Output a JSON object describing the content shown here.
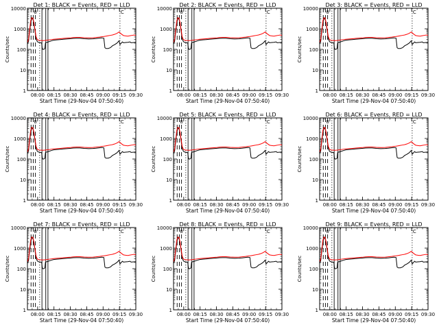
{
  "colors": {
    "background": "#ffffff",
    "events": "#000000",
    "lld": "#ff0000"
  },
  "chart_data": [
    {
      "title": "Det 1: BLACK = Events, RED = LLD"
    },
    {
      "title": "Det 2: BLACK = Events, RED = LLD"
    },
    {
      "title": "Det 3: BLACK = Events, RED = LLD"
    },
    {
      "title": "Det 4: BLACK = Events, RED = LLD"
    },
    {
      "title": "Det 5: BLACK = Events, RED = LLD"
    },
    {
      "title": "Det 6: BLACK = Events, RED = LLD"
    },
    {
      "title": "Det 7: BLACK = Events, RED = LLD"
    },
    {
      "title": "Det 8: BLACK = Events, RED = LLD"
    },
    {
      "title": "Det 9: BLACK = Events, RED = LLD"
    }
  ],
  "common": {
    "type": "line",
    "xlabel": "Start Time (29-Nov-04 07:50:40)",
    "ylabel": "Counts/sec",
    "x_ticks": [
      "08:00",
      "08:15",
      "08:30",
      "08:45",
      "09:00",
      "09:15",
      "09:30"
    ],
    "x_tick_minutes": [
      9.33,
      24.33,
      39.33,
      54.33,
      69.33,
      84.33,
      99.33
    ],
    "x_range_minutes": [
      0,
      99.33
    ],
    "y_scale": "log",
    "y_range": [
      1,
      10000
    ],
    "y_ticks": [
      "1",
      "10",
      "100",
      "1000",
      "10000"
    ],
    "series": [
      {
        "name": "Events",
        "color": "#000000",
        "points": [
          [
            0,
            180
          ],
          [
            1,
            250
          ],
          [
            2,
            700
          ],
          [
            3,
            2000
          ],
          [
            4,
            3200
          ],
          [
            5,
            3000
          ],
          [
            6,
            1700
          ],
          [
            7,
            700
          ],
          [
            8,
            320
          ],
          [
            9,
            240
          ],
          [
            10,
            220
          ],
          [
            11,
            215
          ],
          [
            12,
            210
          ],
          [
            13,
            205
          ],
          [
            13.5,
            120
          ],
          [
            14,
            100
          ],
          [
            15,
            100
          ],
          [
            16,
            110
          ],
          [
            16.5,
            205
          ],
          [
            17,
            215
          ],
          [
            18,
            220
          ],
          [
            22,
            260
          ],
          [
            24,
            280
          ],
          [
            27,
            290
          ],
          [
            30,
            300
          ],
          [
            33,
            310
          ],
          [
            36,
            320
          ],
          [
            39,
            330
          ],
          [
            42,
            340
          ],
          [
            45,
            345
          ],
          [
            48,
            345
          ],
          [
            52,
            330
          ],
          [
            56,
            320
          ],
          [
            60,
            325
          ],
          [
            63,
            335
          ],
          [
            66,
            350
          ],
          [
            68,
            360
          ],
          [
            70,
            350
          ],
          [
            71,
            120
          ],
          [
            72,
            110
          ],
          [
            74,
            110
          ],
          [
            76,
            120
          ],
          [
            78,
            150
          ],
          [
            80,
            170
          ],
          [
            82,
            200
          ],
          [
            84,
            260
          ],
          [
            84.8,
            170
          ],
          [
            86,
            200
          ],
          [
            87,
            230
          ],
          [
            88,
            210
          ],
          [
            90,
            215
          ],
          [
            92,
            220
          ],
          [
            94,
            230
          ],
          [
            95,
            210
          ],
          [
            99.33,
            220
          ]
        ]
      },
      {
        "name": "LLD",
        "color": "#ff0000",
        "points": [
          [
            0,
            220
          ],
          [
            1,
            300
          ],
          [
            2,
            900
          ],
          [
            3,
            2500
          ],
          [
            4,
            3500
          ],
          [
            5,
            3300
          ],
          [
            6,
            2000
          ],
          [
            7,
            850
          ],
          [
            8,
            400
          ],
          [
            9,
            300
          ],
          [
            10,
            280
          ],
          [
            11,
            275
          ],
          [
            12,
            270
          ],
          [
            14,
            265
          ],
          [
            16,
            270
          ],
          [
            18,
            280
          ],
          [
            22,
            300
          ],
          [
            24,
            310
          ],
          [
            27,
            320
          ],
          [
            30,
            330
          ],
          [
            33,
            340
          ],
          [
            36,
            350
          ],
          [
            39,
            360
          ],
          [
            42,
            375
          ],
          [
            45,
            385
          ],
          [
            48,
            385
          ],
          [
            52,
            370
          ],
          [
            56,
            360
          ],
          [
            60,
            365
          ],
          [
            63,
            380
          ],
          [
            66,
            395
          ],
          [
            68,
            410
          ],
          [
            70,
            420
          ],
          [
            72,
            440
          ],
          [
            74,
            460
          ],
          [
            76,
            480
          ],
          [
            78,
            500
          ],
          [
            80,
            540
          ],
          [
            82,
            600
          ],
          [
            84,
            700
          ],
          [
            86,
            560
          ],
          [
            88,
            470
          ],
          [
            90,
            450
          ],
          [
            92,
            440
          ],
          [
            94,
            460
          ],
          [
            96,
            480
          ],
          [
            98,
            500
          ],
          [
            99.33,
            470
          ]
        ]
      }
    ],
    "vertical_markers": [
      {
        "minute": 3.3,
        "style": "dashed"
      },
      {
        "minute": 5.3,
        "style": "dashed"
      },
      {
        "minute": 7.3,
        "style": "dashed"
      },
      {
        "minute": 11.2,
        "style": "dotted"
      },
      {
        "minute": 13.3,
        "style": "solid"
      },
      {
        "minute": 16.8,
        "style": "solid"
      },
      {
        "minute": 18.8,
        "style": "solid"
      },
      {
        "minute": 84.8,
        "style": "dotted"
      }
    ],
    "top_labels": [
      "0",
      "C"
    ]
  }
}
